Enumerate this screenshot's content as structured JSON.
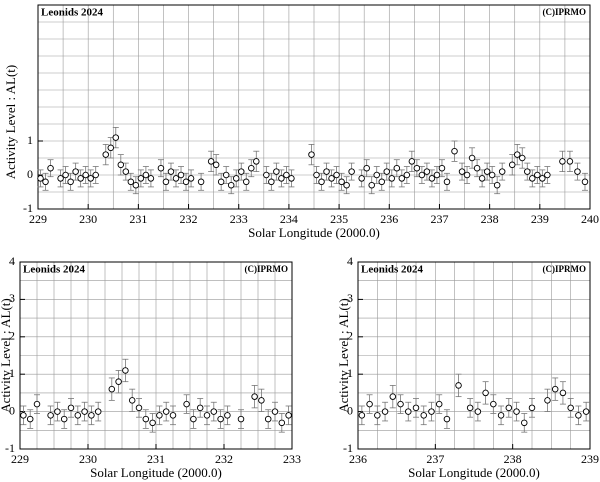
{
  "chart_data": [
    {
      "type": "scatter",
      "title": "Leonids 2024",
      "copyright": "(C)IPRMO",
      "x_label": "Solar Longitude (2000.0)",
      "y_label": "Activity Level : AL(t)",
      "xlim": [
        229,
        240
      ],
      "ylim": [
        -1,
        5
      ],
      "xticks": [
        229,
        230,
        231,
        232,
        233,
        234,
        235,
        236,
        237,
        238,
        239,
        240
      ],
      "yticks": [
        -1,
        0,
        1
      ],
      "xgrid": [
        229,
        229.5,
        230,
        230.5,
        231,
        231.5,
        232,
        232.5,
        233,
        233.5,
        234,
        234.5,
        235,
        235.5,
        236,
        236.5,
        237,
        237.5,
        238,
        238.5,
        239,
        239.5,
        240
      ],
      "ygrid": [
        -1,
        -0.5,
        0,
        0.5,
        1,
        1.5,
        2,
        2.5,
        3,
        3.5,
        4,
        4.5,
        5
      ],
      "x": [
        229.05,
        229.15,
        229.25,
        229.45,
        229.55,
        229.65,
        229.75,
        229.85,
        229.95,
        230.05,
        230.15,
        230.35,
        230.45,
        230.55,
        230.65,
        230.75,
        230.85,
        230.95,
        231.05,
        231.15,
        231.25,
        231.45,
        231.55,
        231.65,
        231.75,
        231.85,
        231.95,
        232.05,
        232.25,
        232.45,
        232.55,
        232.65,
        232.75,
        232.85,
        232.95,
        233.05,
        233.15,
        233.25,
        233.35,
        233.55,
        233.65,
        233.75,
        233.85,
        233.95,
        234.05,
        234.45,
        234.55,
        234.65,
        234.75,
        234.85,
        234.95,
        235.05,
        235.15,
        235.25,
        235.45,
        235.55,
        235.65,
        235.75,
        235.85,
        235.95,
        236.05,
        236.15,
        236.25,
        236.35,
        236.45,
        236.55,
        236.65,
        236.75,
        236.85,
        236.95,
        237.05,
        237.15,
        237.3,
        237.45,
        237.55,
        237.65,
        237.75,
        237.85,
        237.95,
        238.05,
        238.15,
        238.25,
        238.45,
        238.55,
        238.65,
        238.75,
        238.85,
        238.95,
        239.05,
        239.15,
        239.45,
        239.6,
        239.75,
        239.9
      ],
      "values": [
        -0.1,
        -0.2,
        0.2,
        -0.1,
        0.0,
        -0.2,
        0.1,
        -0.1,
        0.0,
        -0.1,
        0.0,
        0.6,
        0.8,
        1.1,
        0.3,
        0.1,
        -0.2,
        -0.3,
        -0.1,
        0.0,
        -0.1,
        0.2,
        -0.2,
        0.1,
        -0.1,
        0.0,
        -0.2,
        -0.1,
        -0.2,
        0.4,
        0.3,
        -0.2,
        0.0,
        -0.3,
        -0.1,
        0.1,
        -0.2,
        0.2,
        0.4,
        0.0,
        -0.2,
        0.1,
        -0.1,
        0.0,
        -0.1,
        0.6,
        0.0,
        -0.2,
        0.1,
        -0.1,
        0.0,
        -0.2,
        -0.3,
        0.1,
        -0.1,
        0.2,
        -0.3,
        0.0,
        -0.2,
        0.1,
        -0.1,
        0.2,
        -0.1,
        0.0,
        0.4,
        0.2,
        0.0,
        0.1,
        -0.1,
        0.0,
        0.2,
        -0.2,
        0.7,
        0.1,
        0.0,
        0.5,
        0.2,
        -0.1,
        0.1,
        0.0,
        -0.3,
        0.1,
        0.3,
        0.6,
        0.5,
        0.1,
        -0.1,
        0.0,
        -0.1,
        0.0,
        0.4,
        0.4,
        0.1,
        -0.2
      ],
      "errors": [
        0.25,
        0.25,
        0.25,
        0.25,
        0.25,
        0.25,
        0.25,
        0.25,
        0.25,
        0.25,
        0.25,
        0.3,
        0.3,
        0.3,
        0.3,
        0.25,
        0.25,
        0.25,
        0.25,
        0.25,
        0.25,
        0.25,
        0.25,
        0.25,
        0.25,
        0.25,
        0.25,
        0.25,
        0.25,
        0.3,
        0.3,
        0.25,
        0.25,
        0.25,
        0.25,
        0.25,
        0.25,
        0.25,
        0.3,
        0.25,
        0.25,
        0.25,
        0.25,
        0.25,
        0.25,
        0.3,
        0.25,
        0.25,
        0.25,
        0.25,
        0.25,
        0.25,
        0.25,
        0.25,
        0.25,
        0.25,
        0.25,
        0.25,
        0.25,
        0.25,
        0.25,
        0.25,
        0.25,
        0.25,
        0.3,
        0.25,
        0.25,
        0.25,
        0.25,
        0.25,
        0.25,
        0.25,
        0.3,
        0.25,
        0.25,
        0.3,
        0.25,
        0.25,
        0.25,
        0.25,
        0.25,
        0.25,
        0.3,
        0.3,
        0.3,
        0.25,
        0.25,
        0.25,
        0.25,
        0.25,
        0.3,
        0.3,
        0.25,
        0.25
      ]
    },
    {
      "type": "scatter",
      "title": "Leonids 2024",
      "copyright": "(C)IPRMO",
      "x_label": "Solar Longitude (2000.0)",
      "y_label": "Activity Level : AL(t)",
      "xlim": [
        229,
        233
      ],
      "ylim": [
        -1,
        4
      ],
      "xticks": [
        229,
        230,
        231,
        232,
        233
      ],
      "yticks": [
        -1,
        0,
        1,
        2,
        3,
        4
      ],
      "xgrid": [
        229,
        229.25,
        229.5,
        229.75,
        230,
        230.25,
        230.5,
        230.75,
        231,
        231.25,
        231.5,
        231.75,
        232,
        232.25,
        232.5,
        232.75,
        233
      ],
      "ygrid": [
        -1,
        -0.5,
        0,
        0.5,
        1,
        1.5,
        2,
        2.5,
        3,
        3.5,
        4
      ],
      "x": [
        229.05,
        229.15,
        229.25,
        229.45,
        229.55,
        229.65,
        229.75,
        229.85,
        229.95,
        230.05,
        230.15,
        230.35,
        230.45,
        230.55,
        230.65,
        230.75,
        230.85,
        230.95,
        231.05,
        231.15,
        231.25,
        231.45,
        231.55,
        231.65,
        231.75,
        231.85,
        231.95,
        232.05,
        232.25,
        232.45,
        232.55,
        232.65,
        232.75,
        232.85,
        232.95
      ],
      "values": [
        -0.1,
        -0.2,
        0.2,
        -0.1,
        0.0,
        -0.2,
        0.1,
        -0.1,
        0.0,
        -0.1,
        0.0,
        0.6,
        0.8,
        1.1,
        0.3,
        0.1,
        -0.2,
        -0.3,
        -0.1,
        0.0,
        -0.1,
        0.2,
        -0.2,
        0.1,
        -0.1,
        0.0,
        -0.2,
        -0.1,
        -0.2,
        0.4,
        0.3,
        -0.2,
        0.0,
        -0.3,
        -0.1
      ],
      "errors": [
        0.25,
        0.25,
        0.25,
        0.25,
        0.25,
        0.25,
        0.25,
        0.25,
        0.25,
        0.25,
        0.25,
        0.3,
        0.3,
        0.3,
        0.3,
        0.25,
        0.25,
        0.25,
        0.25,
        0.25,
        0.25,
        0.25,
        0.25,
        0.25,
        0.25,
        0.25,
        0.25,
        0.25,
        0.25,
        0.3,
        0.3,
        0.25,
        0.25,
        0.25,
        0.25
      ]
    },
    {
      "type": "scatter",
      "title": "Leonids 2024",
      "copyright": "(C)IPRMO",
      "x_label": "Solar Longitude (2000.0)",
      "y_label": "Activity Level : AL(t)",
      "xlim": [
        236,
        239
      ],
      "ylim": [
        -1,
        4
      ],
      "xticks": [
        236,
        237,
        238,
        239
      ],
      "yticks": [
        -1,
        0,
        1,
        2,
        3,
        4
      ],
      "xgrid": [
        236,
        236.25,
        236.5,
        236.75,
        237,
        237.25,
        237.5,
        237.75,
        238,
        238.25,
        238.5,
        238.75,
        239
      ],
      "ygrid": [
        -1,
        -0.5,
        0,
        0.5,
        1,
        1.5,
        2,
        2.5,
        3,
        3.5,
        4
      ],
      "x": [
        236.05,
        236.15,
        236.25,
        236.35,
        236.45,
        236.55,
        236.65,
        236.75,
        236.85,
        236.95,
        237.05,
        237.15,
        237.3,
        237.45,
        237.55,
        237.65,
        237.75,
        237.85,
        237.95,
        238.05,
        238.15,
        238.25,
        238.45,
        238.55,
        238.65,
        238.75,
        238.85,
        238.95
      ],
      "values": [
        -0.1,
        0.2,
        -0.1,
        0.0,
        0.4,
        0.2,
        0.0,
        0.1,
        -0.1,
        0.0,
        0.2,
        -0.2,
        0.7,
        0.1,
        0.0,
        0.5,
        0.2,
        -0.1,
        0.1,
        0.0,
        -0.3,
        0.1,
        0.3,
        0.6,
        0.5,
        0.1,
        -0.1,
        0.0
      ],
      "errors": [
        0.25,
        0.25,
        0.25,
        0.25,
        0.3,
        0.25,
        0.25,
        0.25,
        0.25,
        0.25,
        0.25,
        0.25,
        0.3,
        0.25,
        0.25,
        0.3,
        0.25,
        0.25,
        0.25,
        0.25,
        0.25,
        0.25,
        0.3,
        0.3,
        0.3,
        0.25,
        0.25,
        0.25
      ]
    }
  ]
}
